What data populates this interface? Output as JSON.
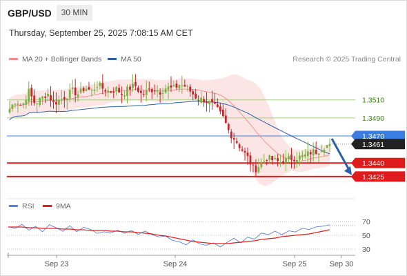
{
  "header": {
    "pair": "GBP/USD",
    "timeframe": "30 MIN",
    "datetime": "Thursday, September 25, 2025 7:08:15 AM CET"
  },
  "legend": {
    "bb_label": "MA 20 + Bollinger Bands",
    "bb_color": "#f28b82",
    "ma50_label": "MA 50",
    "ma50_color": "#2c5fa8",
    "credit": "Research © 2025 Trading Central"
  },
  "rsi_legend": {
    "rsi_label": "RSI",
    "rsi_color": "#5b7fd6",
    "ma_label": "9MA",
    "ma_color": "#e02020"
  },
  "colors": {
    "up": "#7ab342",
    "down": "#c0282d",
    "resistance": "#a8cf85",
    "support": "#e01b1b",
    "pivot": "#3b7de0",
    "current": "#222222",
    "arrow": "#2a5faa"
  },
  "chart_data": [
    {
      "type": "candlestick",
      "title": "GBP/USD 30 MIN",
      "x_ticks": [
        "Sep 23",
        "Sep 24",
        "Sep 25",
        "Sep 30"
      ],
      "y_range": [
        1.3405,
        1.3535
      ],
      "current_price": 1.3461,
      "levels": [
        {
          "value": 1.351,
          "label": "1.3510",
          "kind": "resistance"
        },
        {
          "value": 1.349,
          "label": "1.3490",
          "kind": "resistance"
        },
        {
          "value": 1.347,
          "label": "1.3470",
          "kind": "pivot"
        },
        {
          "value": 1.3461,
          "label": "1.3461",
          "kind": "current"
        },
        {
          "value": 1.344,
          "label": "1.3440",
          "kind": "support"
        },
        {
          "value": 1.3425,
          "label": "1.3425",
          "kind": "support"
        }
      ],
      "close_path": [
        1.35,
        1.351,
        1.3503,
        1.352,
        1.3506,
        1.3511,
        1.3518,
        1.3506,
        1.351,
        1.3514,
        1.352,
        1.3516,
        1.3524,
        1.3519,
        1.3527,
        1.3522,
        1.3519,
        1.3522,
        1.3516,
        1.3523,
        1.3526,
        1.3516,
        1.352,
        1.3522,
        1.3519,
        1.3524,
        1.3522,
        1.3527,
        1.3525,
        1.3518,
        1.3511,
        1.351,
        1.3506,
        1.35,
        1.349,
        1.3474,
        1.3465,
        1.3455,
        1.3445,
        1.3432,
        1.3439,
        1.3446,
        1.3443,
        1.3441,
        1.3443,
        1.3446,
        1.3446,
        1.3448,
        1.3452,
        1.3453,
        1.3458,
        1.3461
      ],
      "forecast": {
        "from": 1.347,
        "to": 1.3425
      }
    },
    {
      "type": "line",
      "title": "RSI",
      "y_ticks": [
        70,
        50,
        30
      ],
      "series": [
        {
          "name": "RSI",
          "values": [
            64,
            61,
            66,
            59,
            63,
            57,
            65,
            60,
            55,
            62,
            56,
            60,
            58,
            52,
            57,
            55,
            58,
            53,
            56,
            51,
            55,
            49,
            46,
            50,
            44,
            40,
            37,
            42,
            38,
            36,
            40,
            34,
            38,
            44,
            41,
            48,
            45,
            52,
            49,
            55,
            52,
            57,
            54,
            60,
            57,
            62,
            64,
            64
          ]
        },
        {
          "name": "9MA",
          "values": [
            62,
            62,
            62,
            61,
            61,
            60,
            60,
            60,
            59,
            59,
            58,
            58,
            57,
            57,
            57,
            56,
            56,
            55,
            55,
            54,
            53,
            52,
            50,
            49,
            47,
            45,
            43,
            41,
            40,
            39,
            38,
            38,
            38,
            39,
            40,
            41,
            42,
            44,
            45,
            46,
            48,
            49,
            50,
            51,
            52,
            54,
            56,
            58
          ]
        }
      ]
    }
  ]
}
